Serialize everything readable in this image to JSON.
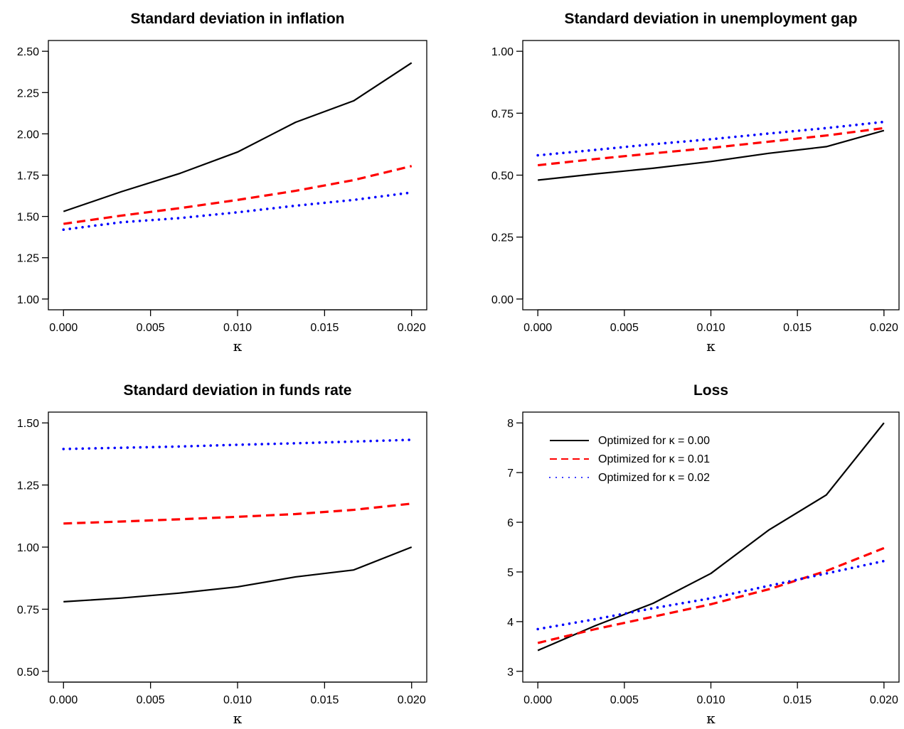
{
  "chart_data": [
    {
      "type": "line",
      "title": "Standard deviation in inflation",
      "xlabel": "κ",
      "ylabel": "",
      "x": [
        0.0,
        0.00333,
        0.00667,
        0.01,
        0.01333,
        0.01667,
        0.02
      ],
      "xlim": [
        0.0,
        0.02
      ],
      "xticks": [
        "0.000",
        "0.005",
        "0.010",
        "0.015",
        "0.020"
      ],
      "ylim": [
        1.0,
        2.5
      ],
      "yticks": [
        "1.00",
        "1.25",
        "1.50",
        "1.75",
        "2.00",
        "2.25",
        "2.50"
      ],
      "series": [
        {
          "values": [
            1.53,
            1.65,
            1.76,
            1.89,
            2.07,
            2.2,
            2.43
          ],
          "color": "#000000",
          "style": "solid"
        },
        {
          "values": [
            1.455,
            1.505,
            1.55,
            1.6,
            1.655,
            1.72,
            1.805
          ],
          "color": "#ff0000",
          "style": "dashed"
        },
        {
          "values": [
            1.42,
            1.465,
            1.49,
            1.525,
            1.565,
            1.6,
            1.645
          ],
          "color": "#0000ff",
          "style": "dotted"
        }
      ]
    },
    {
      "type": "line",
      "title": "Standard deviation in unemployment gap",
      "xlabel": "κ",
      "ylabel": "",
      "x": [
        0.0,
        0.00333,
        0.00667,
        0.01,
        0.01333,
        0.01667,
        0.02
      ],
      "xlim": [
        0.0,
        0.02
      ],
      "xticks": [
        "0.000",
        "0.005",
        "0.010",
        "0.015",
        "0.020"
      ],
      "ylim": [
        0.0,
        1.0
      ],
      "yticks": [
        "0.00",
        "0.25",
        "0.50",
        "0.75",
        "1.00"
      ],
      "series": [
        {
          "values": [
            0.48,
            0.505,
            0.528,
            0.555,
            0.588,
            0.615,
            0.68
          ],
          "color": "#000000",
          "style": "solid"
        },
        {
          "values": [
            0.54,
            0.565,
            0.588,
            0.61,
            0.635,
            0.66,
            0.69
          ],
          "color": "#ff0000",
          "style": "dashed"
        },
        {
          "values": [
            0.58,
            0.602,
            0.625,
            0.645,
            0.668,
            0.69,
            0.715
          ],
          "color": "#0000ff",
          "style": "dotted"
        }
      ]
    },
    {
      "type": "line",
      "title": "Standard deviation in funds rate",
      "xlabel": "κ",
      "ylabel": "",
      "x": [
        0.0,
        0.00333,
        0.00667,
        0.01,
        0.01333,
        0.01667,
        0.02
      ],
      "xlim": [
        0.0,
        0.02
      ],
      "xticks": [
        "0.000",
        "0.005",
        "0.010",
        "0.015",
        "0.020"
      ],
      "ylim": [
        0.5,
        1.5
      ],
      "yticks": [
        "0.50",
        "0.75",
        "1.00",
        "1.25",
        "1.50"
      ],
      "series": [
        {
          "values": [
            0.78,
            0.795,
            0.815,
            0.84,
            0.88,
            0.908,
            1.0
          ],
          "color": "#000000",
          "style": "solid"
        },
        {
          "values": [
            1.095,
            1.103,
            1.112,
            1.122,
            1.133,
            1.15,
            1.175
          ],
          "color": "#ff0000",
          "style": "dashed"
        },
        {
          "values": [
            1.395,
            1.4,
            1.405,
            1.412,
            1.418,
            1.425,
            1.432
          ],
          "color": "#0000ff",
          "style": "dotted"
        }
      ]
    },
    {
      "type": "line",
      "title": "Loss",
      "xlabel": "κ",
      "ylabel": "",
      "x": [
        0.0,
        0.00333,
        0.00667,
        0.01,
        0.01333,
        0.01667,
        0.02
      ],
      "xlim": [
        0.0,
        0.02
      ],
      "xticks": [
        "0.000",
        "0.005",
        "0.010",
        "0.015",
        "0.020"
      ],
      "ylim": [
        3,
        8
      ],
      "yticks": [
        "3",
        "4",
        "5",
        "6",
        "7",
        "8"
      ],
      "series": [
        {
          "name": "Optimized for κ = 0.00",
          "values": [
            3.42,
            3.92,
            4.37,
            4.97,
            5.84,
            6.55,
            8.0
          ],
          "color": "#000000",
          "style": "solid"
        },
        {
          "name": "Optimized for κ = 0.01",
          "values": [
            3.57,
            3.85,
            4.1,
            4.35,
            4.65,
            5.02,
            5.48
          ],
          "color": "#ff0000",
          "style": "dashed"
        },
        {
          "name": "Optimized for κ = 0.02",
          "values": [
            3.85,
            4.05,
            4.27,
            4.47,
            4.72,
            4.97,
            5.22
          ],
          "color": "#0000ff",
          "style": "dotted"
        }
      ],
      "legend": "top-left"
    }
  ]
}
